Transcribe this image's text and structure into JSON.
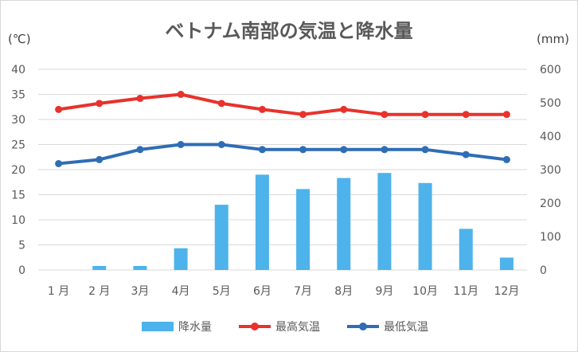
{
  "chart_data": {
    "type": "bar+line",
    "title": "ベトナム南部の気温と降水量",
    "y_left_unit": "(℃)",
    "y_right_unit": "(mm)",
    "ylim_left": [
      0,
      40
    ],
    "ylim_right": [
      0,
      600
    ],
    "yticks_left": [
      "0",
      "5",
      "10",
      "15",
      "20",
      "25",
      "30",
      "35",
      "40"
    ],
    "yticks_right": [
      "0",
      "100",
      "200",
      "300",
      "400",
      "500",
      "600"
    ],
    "categories": [
      "1 月",
      "2 月",
      "3月",
      "4月",
      "5月",
      "6月",
      "7月",
      "8月",
      "9月",
      "10月",
      "11月",
      "12月"
    ],
    "grid": true,
    "legend_position": "bottom",
    "colors": {
      "precip": "#4db3ea",
      "high": "#e8322c",
      "low": "#2f6db5",
      "grid": "#d9d9d9"
    },
    "series": [
      {
        "name": "降水量",
        "type": "bar",
        "axis": "right",
        "values": [
          0,
          12,
          12,
          65,
          195,
          285,
          242,
          275,
          290,
          260,
          123,
          37
        ]
      },
      {
        "name": "最高気温",
        "type": "line",
        "axis": "left",
        "values": [
          32,
          33.2,
          34.2,
          35,
          33.2,
          32,
          31,
          32,
          31,
          31,
          31,
          31
        ]
      },
      {
        "name": "最低気温",
        "type": "line",
        "axis": "left",
        "values": [
          21.2,
          22,
          24,
          25,
          25,
          24,
          24,
          24,
          24,
          24,
          23,
          22
        ]
      }
    ]
  }
}
